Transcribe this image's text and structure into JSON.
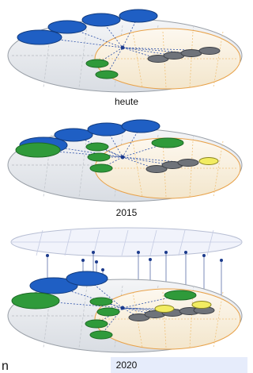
{
  "panels": [
    {
      "label": "heute"
    },
    {
      "label": "2015"
    },
    {
      "label": "2020"
    }
  ],
  "footer_text": "n"
}
